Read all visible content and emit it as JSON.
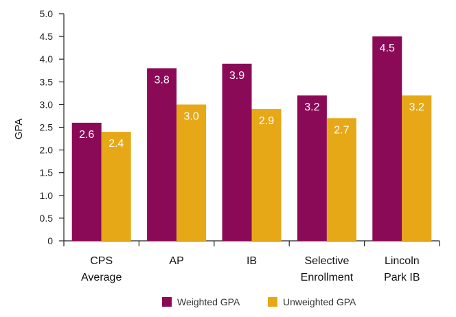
{
  "chart_data": {
    "type": "bar",
    "title": "",
    "xlabel": "",
    "ylabel": "GPA",
    "ylim": [
      0,
      5.0
    ],
    "yticks": [
      0,
      0.5,
      1.0,
      1.5,
      2.0,
      2.5,
      3.0,
      3.5,
      4.0,
      4.5,
      5.0
    ],
    "ytick_labels": [
      "0",
      "0.5",
      "1.0",
      "1.5",
      "2.0",
      "2.5",
      "3.0",
      "3.5",
      "4.0",
      "4.5",
      "5.0"
    ],
    "categories": [
      [
        "CPS",
        "Average"
      ],
      [
        "AP"
      ],
      [
        "IB"
      ],
      [
        "Selective",
        "Enrollment"
      ],
      [
        "Lincoln",
        "Park IB"
      ]
    ],
    "series": [
      {
        "name": "Weighted GPA",
        "color": "#8b0a57",
        "values": [
          2.6,
          3.8,
          3.9,
          3.2,
          4.5
        ],
        "labels": [
          "2.6",
          "3.8",
          "3.9",
          "3.2",
          "4.5"
        ]
      },
      {
        "name": "Unweighted GPA",
        "color": "#e6a817",
        "values": [
          2.4,
          3.0,
          2.9,
          2.7,
          3.2
        ],
        "labels": [
          "2.4",
          "3.0",
          "2.9",
          "2.7",
          "3.2"
        ]
      }
    ],
    "grid": false,
    "legend_position": "bottom"
  }
}
